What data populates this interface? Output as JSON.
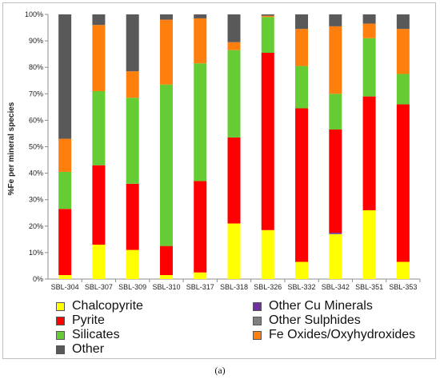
{
  "caption": "(a)",
  "chart_data": {
    "type": "bar",
    "stacked": true,
    "ylabel": "%Fe per mineral species",
    "ylim": [
      0,
      100
    ],
    "y_tick_labels": [
      "0%",
      "10%",
      "20%",
      "30%",
      "40%",
      "50%",
      "60%",
      "70%",
      "80%",
      "90%",
      "100%"
    ],
    "grid": false,
    "legend_position": "bottom",
    "categories": [
      "SBL-304",
      "SBL-307",
      "SBL-309",
      "SBL-310",
      "SBL-317",
      "SBL-318",
      "SBL-326",
      "SBL-332",
      "SBL-342",
      "SBL-351",
      "SBL-353"
    ],
    "series": [
      {
        "name": "Chalcopyrite",
        "color": "#ffff00",
        "values": [
          1.5,
          13,
          11,
          1.5,
          2.5,
          21,
          18.5,
          6.5,
          17,
          26,
          6.5
        ]
      },
      {
        "name": "Other Cu Minerals",
        "color": "#7030a0",
        "values": [
          0,
          0,
          0,
          0,
          0,
          0,
          0,
          0,
          0.5,
          0,
          0
        ]
      },
      {
        "name": "Pyrite",
        "color": "#ff0000",
        "values": [
          25,
          30,
          25,
          11,
          34.5,
          32.5,
          67,
          58,
          39,
          43,
          59.5
        ]
      },
      {
        "name": "Other Sulphides",
        "color": "#808080",
        "values": [
          0,
          0,
          0,
          0,
          0,
          0,
          0,
          0,
          0,
          0,
          0
        ]
      },
      {
        "name": "Silicates",
        "color": "#66cc33",
        "values": [
          14,
          28,
          32.5,
          61,
          44.5,
          33,
          13.5,
          16,
          13.5,
          22,
          11.5
        ]
      },
      {
        "name": "Fe Oxides/Oxyhydroxides",
        "color": "#ff7f0e",
        "values": [
          12.5,
          25,
          10,
          24.5,
          17,
          3,
          0.5,
          14,
          25.5,
          5.5,
          17
        ]
      },
      {
        "name": "Other",
        "color": "#595959",
        "values": [
          47,
          4,
          21.5,
          2,
          1.5,
          10.5,
          0.5,
          5.5,
          4.5,
          3.5,
          5.5
        ]
      }
    ],
    "stack_order": [
      "Chalcopyrite",
      "Other Cu Minerals",
      "Pyrite",
      "Other Sulphides",
      "Silicates",
      "Fe Oxides/Oxyhydroxides",
      "Other"
    ],
    "legend_order": [
      "Chalcopyrite",
      "Other Cu Minerals",
      "Pyrite",
      "Other Sulphides",
      "Silicates",
      "Fe Oxides/Oxyhydroxides",
      "Other"
    ]
  }
}
